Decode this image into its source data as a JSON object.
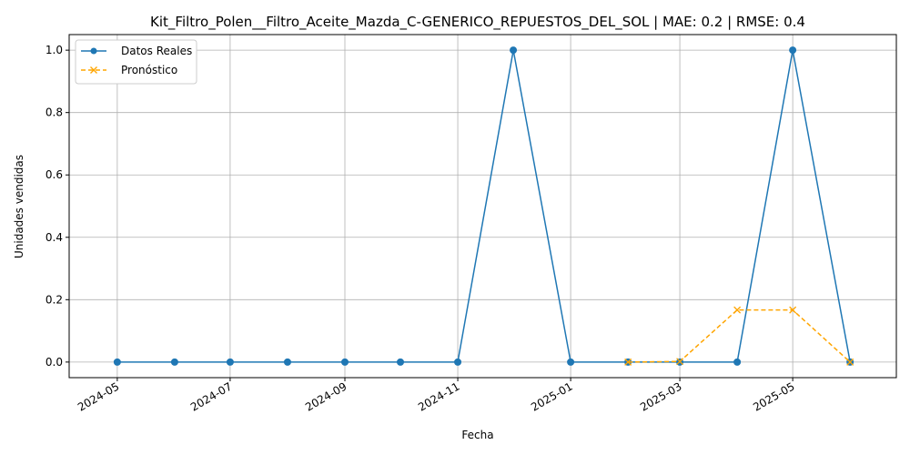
{
  "chart_data": {
    "type": "line",
    "title": "Kit_Filtro_Polen__Filtro_Aceite_Mazda_C-GENERICO_REPUESTOS_DEL_SOL | MAE: 0.2 | RMSE: 0.4",
    "xlabel": "Fecha",
    "ylabel": "Unidades vendidas",
    "ylim": [
      -0.05,
      1.05
    ],
    "grid": true,
    "legend_position": "top-left",
    "x_ticks": [
      "2024-05",
      "2024-07",
      "2024-09",
      "2024-11",
      "2025-01",
      "2025-03",
      "2025-05"
    ],
    "y_ticks": [
      "0.0",
      "0.2",
      "0.4",
      "0.6",
      "0.8",
      "1.0"
    ],
    "series": [
      {
        "name": "Datos Reales",
        "color": "#1f77b4",
        "style": "solid",
        "marker": "circle",
        "x": [
          "2024-05",
          "2024-06",
          "2024-07",
          "2024-08",
          "2024-09",
          "2024-10",
          "2024-11",
          "2024-12",
          "2025-01",
          "2025-02",
          "2025-03",
          "2025-04",
          "2025-05",
          "2025-06"
        ],
        "y": [
          0,
          0,
          0,
          0,
          0,
          0,
          0,
          1,
          0,
          0,
          0,
          0,
          1,
          0
        ]
      },
      {
        "name": "Pronóstico",
        "color": "#ffa500",
        "style": "dashed",
        "marker": "x",
        "x": [
          "2025-02",
          "2025-03",
          "2025-04",
          "2025-05",
          "2025-06"
        ],
        "y": [
          0,
          0.002,
          0.167,
          0.167,
          0
        ]
      }
    ]
  }
}
